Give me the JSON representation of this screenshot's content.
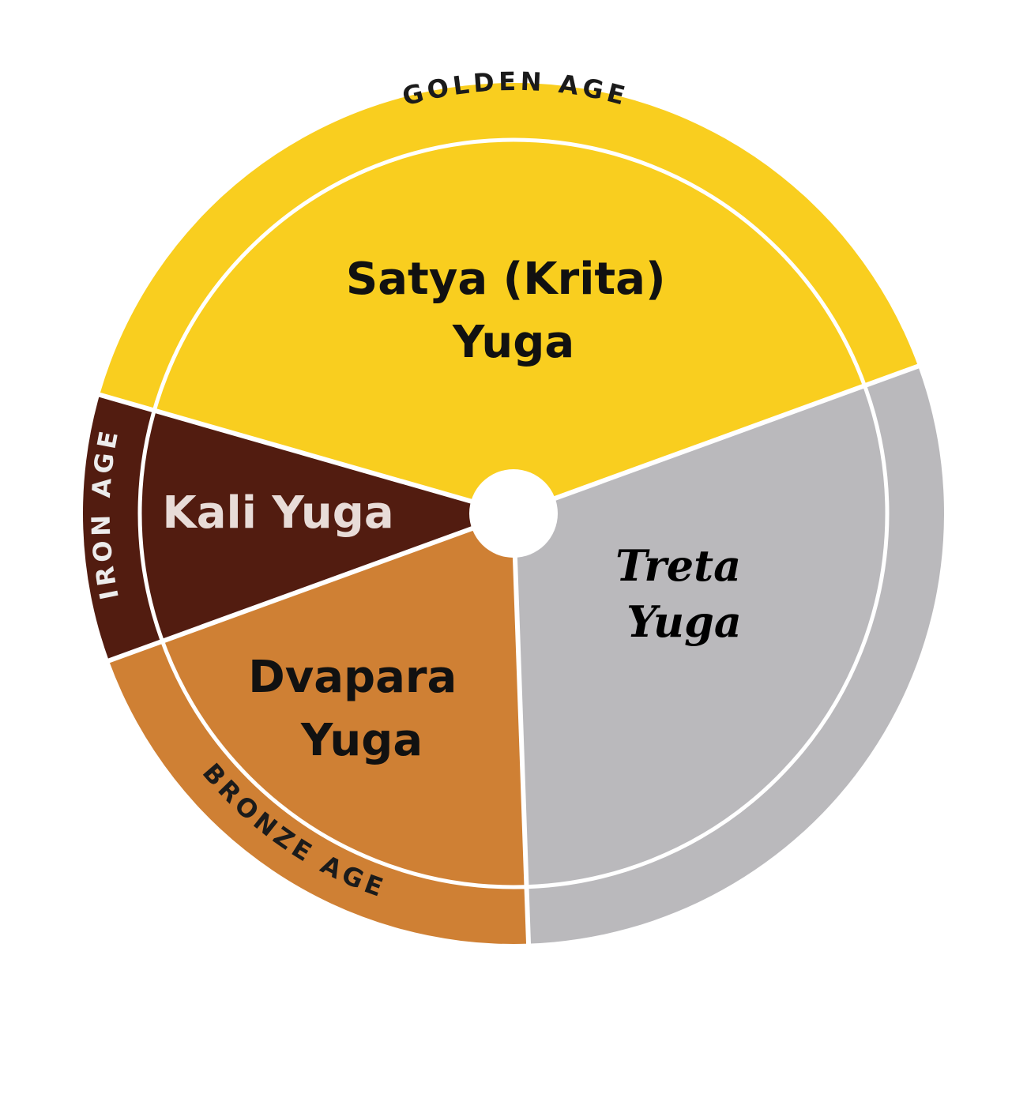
{
  "diagram": {
    "segments": [
      {
        "id": "satya",
        "name_lines": [
          "Satya (Krita)",
          "Yuga"
        ],
        "age_label": "GOLDEN AGE",
        "color": "#F9CE1F",
        "share": 0.4
      },
      {
        "id": "treta",
        "name_lines": [
          "Treta",
          "Yuga"
        ],
        "age_label": "",
        "color": "#BAB9BC",
        "share": 0.3
      },
      {
        "id": "dvapara",
        "name_lines": [
          "Dvapara",
          "Yuga"
        ],
        "age_label": "BRONZE AGE",
        "color": "#CF8034",
        "share": 0.2
      },
      {
        "id": "kali",
        "name_lines": [
          "Kali Yuga"
        ],
        "age_label": "IRON AGE",
        "color": "#521C10",
        "share": 0.1
      }
    ],
    "divider_color": "#FFFFFF",
    "hub_color": "#FFFFFF"
  }
}
